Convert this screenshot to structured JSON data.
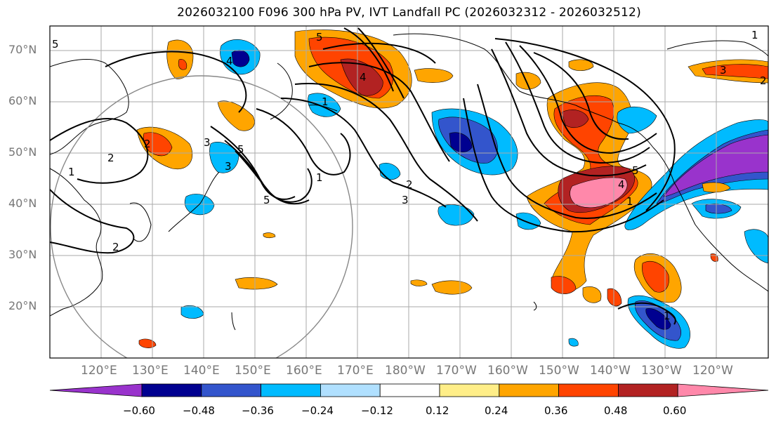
{
  "title": "2026032100 F096 300 hPa PV, IVT Landfall PC (2026032312 - 2026032512)",
  "lat_labels": [
    "70°N",
    "60°N",
    "50°N",
    "40°N",
    "30°N",
    "20°N"
  ],
  "lon_labels": [
    "120°E",
    "130°E",
    "140°E",
    "150°E",
    "160°E",
    "170°E",
    "180°W",
    "170°W",
    "160°W",
    "150°W",
    "140°W",
    "130°W",
    "120°W"
  ],
  "contour_labels": [
    "5",
    "4",
    "5",
    "2",
    "1",
    "2",
    "1",
    "5",
    "3",
    "4",
    "1",
    "5",
    "2",
    "3",
    "1",
    "4",
    "5",
    "2",
    "3",
    "1",
    "1",
    "3",
    "2"
  ],
  "colorbar": {
    "colors": [
      "#9933cc",
      "#000090",
      "#3355cc",
      "#00bbff",
      "#b0e0ff",
      "#ffffff",
      "#ffee88",
      "#ffa500",
      "#ff4400",
      "#b22222",
      "#ff88aa"
    ],
    "ticks": [
      "−0.60",
      "−0.48",
      "−0.36",
      "−0.24",
      "−0.12",
      "0.12",
      "0.24",
      "0.36",
      "0.48",
      "0.60"
    ]
  }
}
